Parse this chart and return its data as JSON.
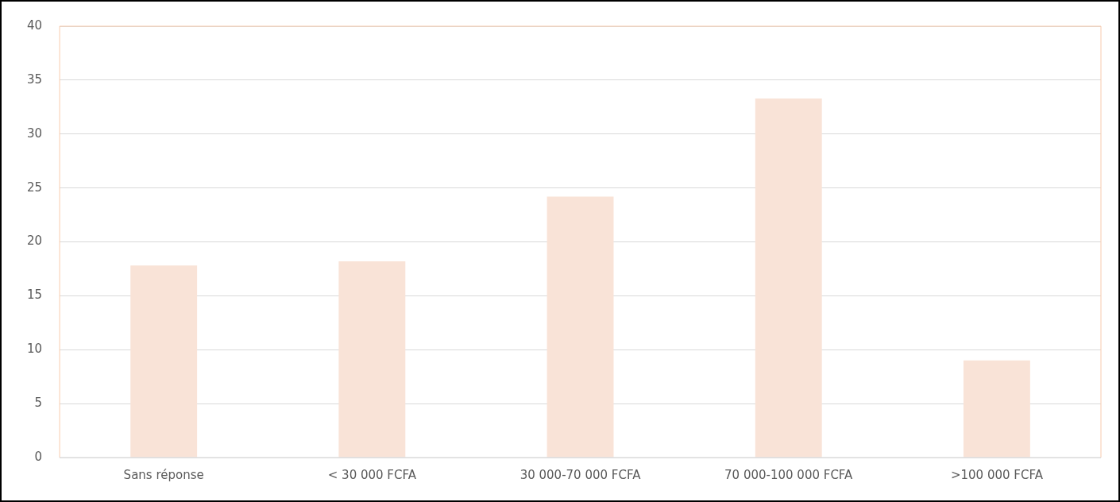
{
  "chart_data": {
    "type": "bar",
    "categories": [
      "Sans réponse",
      "< 30 000 FCFA",
      "30 000-70 000 FCFA",
      "70 000-100 000 FCFA",
      ">100 000 FCFA"
    ],
    "values": [
      17.8,
      18.2,
      24.2,
      33.3,
      9.0
    ],
    "color": "#f9e3d7",
    "ylim": [
      0,
      40
    ],
    "yticks": [
      0,
      5,
      10,
      15,
      20,
      25,
      30,
      35,
      40
    ],
    "grid": "y",
    "legend": false
  }
}
